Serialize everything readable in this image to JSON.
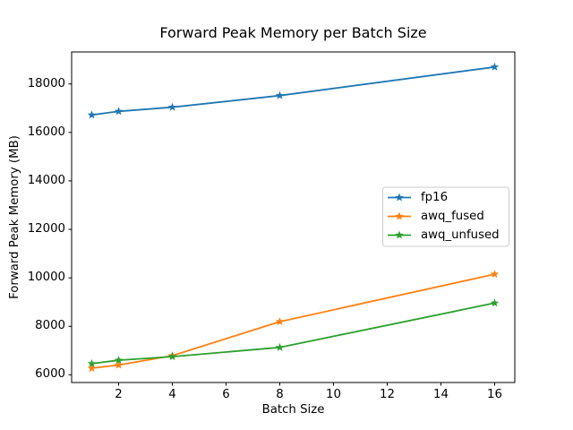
{
  "chart_data": {
    "type": "line",
    "title": "Forward Peak Memory per Batch Size",
    "xlabel": "Batch Size",
    "ylabel": "Forward Peak Memory (MB)",
    "x": [
      1,
      2,
      4,
      8,
      16
    ],
    "series": [
      {
        "name": "fp16",
        "color": "#1f77b4",
        "marker": "star",
        "values": [
          16720,
          16870,
          17040,
          17520,
          18700
        ]
      },
      {
        "name": "awq_fused",
        "color": "#ff7f0e",
        "marker": "star",
        "values": [
          6270,
          6400,
          6790,
          8190,
          10150
        ]
      },
      {
        "name": "awq_unfused",
        "color": "#2ca02c",
        "marker": "star",
        "values": [
          6460,
          6600,
          6750,
          7130,
          8960
        ]
      }
    ],
    "xticks": [
      2,
      4,
      6,
      8,
      10,
      12,
      14,
      16
    ],
    "yticks": [
      6000,
      8000,
      10000,
      12000,
      14000,
      16000,
      18000
    ],
    "xlim": [
      0.25,
      16.75
    ],
    "ylim": [
      5680,
      19320
    ],
    "grid": false,
    "legend": {
      "position": "center right",
      "entries": [
        "fp16",
        "awq_fused",
        "awq_unfused"
      ]
    },
    "frame_color": "#000000",
    "legend_border_color": "#cccccc",
    "background_color": "#ffffff"
  }
}
